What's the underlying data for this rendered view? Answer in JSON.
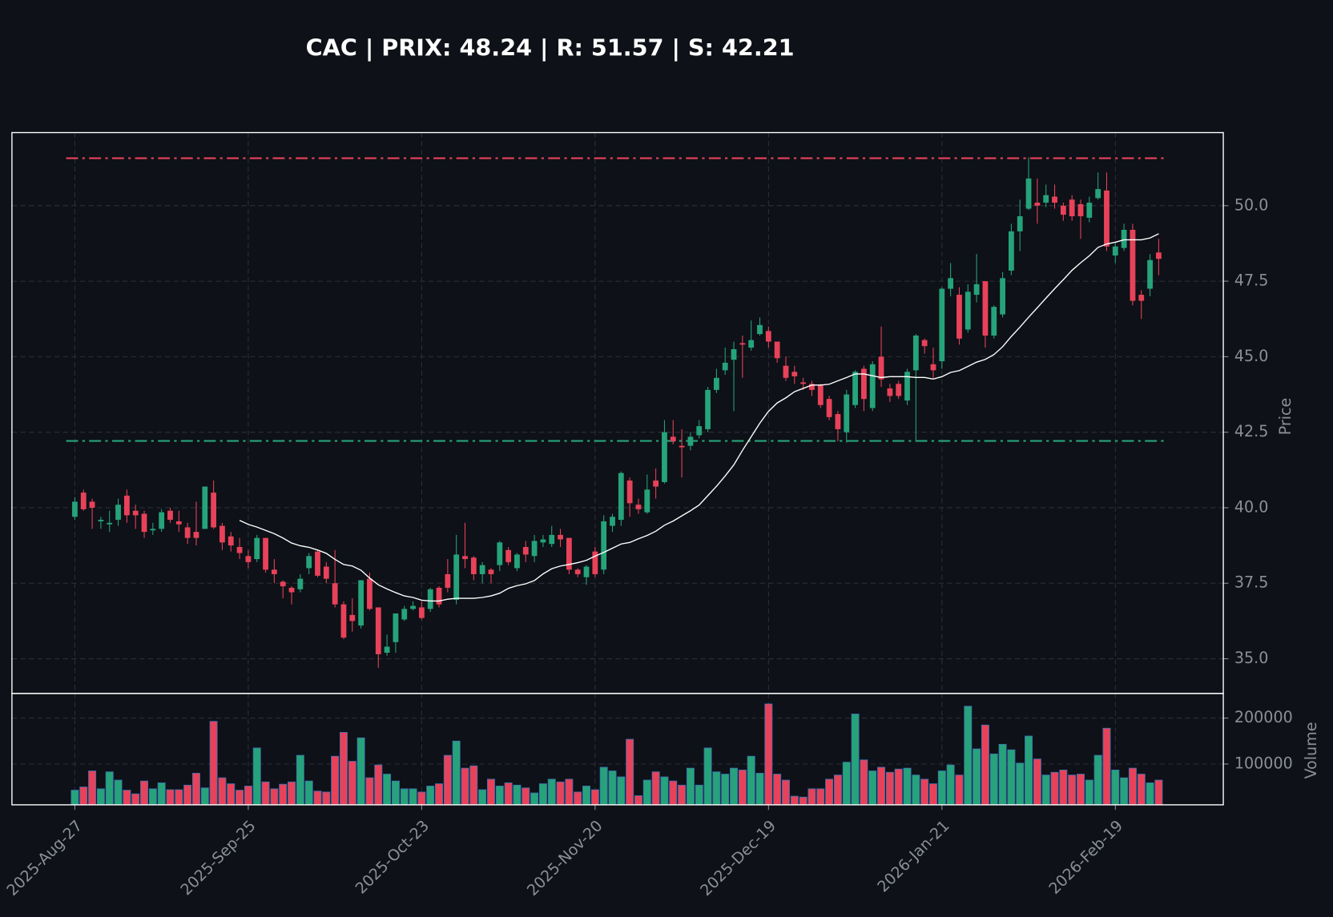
{
  "chart_data": {
    "type": "candlestick",
    "title": "CAC | PRIX: 48.24 | R: 51.57 | S: 42.21",
    "ylabel": "Price",
    "volume_label": "Volume",
    "categories": [
      "2025-Aug-27",
      null,
      null,
      null,
      null,
      null,
      null,
      null,
      null,
      null,
      null,
      null,
      null,
      null,
      null,
      null,
      null,
      null,
      null,
      null,
      "2025-Sep-25",
      null,
      null,
      null,
      null,
      null,
      null,
      null,
      null,
      null,
      null,
      null,
      null,
      null,
      null,
      null,
      null,
      null,
      null,
      null,
      "2025-Oct-23",
      null,
      null,
      null,
      null,
      null,
      null,
      null,
      null,
      null,
      null,
      null,
      null,
      null,
      null,
      null,
      null,
      null,
      null,
      null,
      "2025-Nov-20",
      null,
      null,
      null,
      null,
      null,
      null,
      null,
      null,
      null,
      null,
      null,
      null,
      null,
      null,
      null,
      null,
      null,
      null,
      null,
      "2025-Dec-19",
      null,
      null,
      null,
      null,
      null,
      null,
      null,
      null,
      null,
      null,
      null,
      null,
      null,
      null,
      null,
      null,
      null,
      null,
      null,
      "2026-Jan-21",
      null,
      null,
      null,
      null,
      null,
      null,
      null,
      null,
      null,
      null,
      null,
      null,
      null,
      null,
      null,
      null,
      null,
      null,
      null,
      "2026-Feb-19",
      null,
      null,
      null,
      null,
      null
    ],
    "open": [
      39.7,
      40.5,
      40.2,
      39.55,
      39.45,
      39.6,
      40.4,
      39.9,
      39.8,
      39.25,
      39.3,
      39.9,
      39.55,
      39.35,
      39.2,
      39.3,
      40.5,
      39.4,
      39.05,
      38.7,
      38.4,
      38.3,
      39.0,
      37.95,
      37.55,
      37.35,
      37.3,
      38.0,
      38.55,
      38.05,
      37.5,
      36.8,
      36.45,
      36.1,
      37.65,
      36.7,
      35.2,
      35.55,
      36.3,
      36.65,
      36.7,
      36.65,
      37.35,
      37.8,
      36.95,
      38.4,
      38.35,
      37.8,
      37.95,
      38.1,
      38.6,
      38.0,
      38.7,
      38.4,
      38.85,
      38.8,
      39.1,
      39.0,
      37.95,
      37.7,
      38.55,
      37.95,
      39.4,
      39.6,
      40.9,
      40.1,
      39.85,
      40.9,
      40.85,
      42.35,
      42.05,
      42.05,
      42.4,
      42.6,
      43.9,
      44.55,
      44.9,
      45.45,
      45.3,
      45.75,
      45.85,
      45.5,
      44.7,
      44.5,
      44.15,
      44.1,
      44.05,
      43.6,
      43.1,
      42.5,
      43.4,
      44.6,
      43.3,
      45.0,
      43.95,
      44.1,
      43.55,
      44.55,
      45.55,
      44.75,
      44.85,
      47.25,
      47.05,
      45.9,
      47.05,
      47.5,
      45.7,
      46.4,
      47.85,
      49.15,
      49.9,
      50.1,
      50.1,
      50.3,
      50.0,
      50.2,
      50.05,
      49.6,
      50.25,
      50.5,
      48.35,
      48.6,
      49.2,
      47.05,
      47.25,
      48.45
    ],
    "high": [
      40.35,
      40.6,
      40.3,
      39.7,
      39.9,
      40.3,
      40.6,
      40.1,
      39.9,
      39.5,
      39.95,
      40.0,
      39.9,
      39.5,
      40.2,
      40.7,
      40.9,
      39.5,
      39.2,
      39.0,
      38.6,
      39.1,
      39.0,
      38.3,
      37.6,
      37.4,
      37.8,
      38.5,
      38.6,
      38.2,
      38.6,
      36.9,
      37.0,
      37.6,
      37.85,
      36.7,
      35.8,
      36.5,
      36.75,
      36.9,
      36.9,
      37.35,
      37.4,
      38.3,
      39.1,
      39.5,
      38.4,
      38.2,
      38.0,
      38.9,
      38.7,
      38.5,
      38.9,
      39.1,
      39.1,
      39.4,
      39.3,
      39.0,
      38.0,
      38.1,
      38.7,
      39.75,
      39.8,
      41.2,
      41.0,
      40.3,
      41.1,
      41.3,
      42.9,
      42.9,
      42.6,
      42.5,
      42.9,
      44.0,
      44.6,
      45.3,
      45.5,
      45.7,
      46.2,
      46.3,
      46.0,
      45.5,
      45.0,
      44.7,
      44.3,
      44.2,
      44.1,
      43.7,
      43.2,
      43.9,
      44.55,
      44.7,
      44.85,
      46.0,
      44.1,
      44.2,
      44.6,
      45.75,
      45.6,
      45.3,
      47.3,
      48.1,
      47.3,
      47.4,
      48.4,
      47.5,
      46.7,
      47.8,
      49.4,
      50.2,
      51.6,
      50.9,
      50.7,
      50.7,
      50.1,
      50.35,
      50.2,
      50.3,
      51.1,
      51.1,
      48.8,
      49.4,
      49.4,
      47.2,
      48.4,
      48.9
    ],
    "low": [
      39.6,
      39.9,
      39.3,
      39.3,
      39.2,
      39.4,
      39.5,
      39.3,
      39.0,
      39.1,
      39.2,
      39.5,
      39.2,
      38.8,
      38.75,
      39.3,
      39.3,
      38.6,
      38.55,
      38.3,
      38.0,
      38.2,
      37.85,
      37.5,
      37.0,
      36.8,
      37.2,
      37.8,
      37.7,
      37.5,
      36.7,
      35.65,
      35.9,
      36.0,
      36.6,
      34.7,
      35.1,
      35.2,
      36.25,
      36.6,
      36.3,
      36.55,
      36.7,
      37.2,
      36.8,
      38.0,
      37.6,
      37.5,
      37.5,
      37.9,
      38.1,
      37.9,
      38.2,
      38.2,
      38.7,
      38.7,
      38.7,
      37.8,
      37.7,
      37.45,
      37.7,
      37.8,
      39.2,
      39.4,
      39.7,
      39.8,
      39.8,
      40.3,
      40.8,
      42.1,
      41.0,
      41.9,
      42.3,
      42.5,
      43.8,
      44.4,
      43.2,
      44.3,
      45.2,
      45.7,
      45.3,
      44.8,
      44.2,
      44.1,
      43.9,
      43.7,
      43.3,
      42.9,
      42.2,
      42.15,
      43.3,
      43.2,
      43.2,
      44.0,
      43.5,
      43.6,
      43.4,
      42.2,
      45.1,
      44.3,
      44.6,
      47.0,
      45.4,
      45.8,
      46.8,
      45.3,
      45.6,
      46.3,
      47.7,
      48.5,
      49.85,
      49.4,
      49.95,
      49.9,
      49.5,
      49.5,
      48.9,
      49.45,
      50.2,
      48.5,
      48.1,
      48.5,
      46.7,
      46.25,
      47.0,
      47.7
    ],
    "close": [
      40.2,
      39.95,
      40.0,
      39.6,
      39.5,
      40.1,
      39.75,
      39.75,
      39.2,
      39.3,
      39.85,
      39.6,
      39.45,
      39.0,
      39.0,
      40.7,
      39.35,
      38.85,
      38.75,
      38.5,
      38.2,
      39.0,
      37.95,
      37.8,
      37.4,
      37.2,
      37.65,
      38.4,
      37.75,
      37.65,
      36.8,
      35.7,
      36.25,
      37.6,
      36.65,
      35.15,
      35.4,
      36.5,
      36.65,
      36.75,
      36.35,
      37.3,
      36.8,
      37.35,
      38.45,
      38.3,
      37.8,
      38.1,
      37.8,
      38.85,
      38.2,
      38.45,
      38.45,
      38.9,
      38.95,
      39.1,
      38.95,
      37.95,
      37.8,
      38.05,
      37.8,
      39.55,
      39.7,
      41.15,
      40.15,
      39.95,
      40.6,
      40.7,
      42.5,
      42.2,
      42.0,
      42.35,
      42.7,
      43.9,
      44.3,
      44.8,
      45.25,
      45.4,
      45.55,
      46.05,
      45.5,
      44.95,
      44.3,
      44.35,
      44.1,
      43.9,
      43.4,
      43.0,
      42.6,
      43.75,
      44.5,
      43.6,
      44.75,
      44.25,
      43.7,
      43.7,
      44.5,
      45.7,
      45.35,
      44.55,
      47.25,
      47.6,
      45.6,
      47.15,
      47.4,
      45.7,
      46.65,
      47.6,
      49.15,
      49.65,
      50.9,
      50.0,
      50.35,
      50.1,
      49.7,
      49.65,
      49.65,
      50.1,
      50.55,
      48.65,
      48.65,
      49.2,
      46.85,
      46.85,
      48.2,
      48.24
    ],
    "volume": [
      43000,
      50000,
      85000,
      46000,
      83000,
      65000,
      43000,
      35000,
      63000,
      46000,
      59000,
      44000,
      44000,
      54000,
      80000,
      48000,
      193000,
      70000,
      57000,
      43000,
      52000,
      135000,
      61000,
      46000,
      56000,
      61000,
      119000,
      63000,
      41000,
      39000,
      117000,
      169000,
      106000,
      157000,
      70000,
      98000,
      78000,
      63000,
      46000,
      46000,
      39000,
      52000,
      57000,
      119000,
      150000,
      91000,
      96000,
      44000,
      67000,
      52000,
      59000,
      54000,
      48000,
      37000,
      57000,
      67000,
      61000,
      67000,
      39000,
      52000,
      44000,
      93000,
      85000,
      72000,
      154000,
      31000,
      65000,
      83000,
      72000,
      63000,
      54000,
      91000,
      54000,
      135000,
      83000,
      78000,
      91000,
      87000,
      117000,
      80000,
      231000,
      78000,
      65000,
      30000,
      28000,
      46000,
      46000,
      67000,
      76000,
      104000,
      209000,
      109000,
      85000,
      93000,
      82000,
      89000,
      91000,
      76000,
      67000,
      57000,
      85000,
      98000,
      76000,
      226000,
      133000,
      185000,
      122000,
      143000,
      131000,
      102000,
      161000,
      111000,
      76000,
      82000,
      87000,
      76000,
      78000,
      65000,
      119000,
      178000,
      87000,
      70000,
      91000,
      78000,
      59000,
      65000
    ],
    "ma": [
      null,
      null,
      null,
      null,
      null,
      null,
      null,
      null,
      null,
      null,
      null,
      null,
      null,
      null,
      null,
      null,
      null,
      null,
      null,
      39.58,
      39.45,
      39.36,
      39.25,
      39.14,
      39.0,
      38.83,
      38.74,
      38.69,
      38.6,
      38.49,
      38.29,
      38.12,
      38.07,
      37.93,
      37.67,
      37.45,
      37.31,
      37.19,
      37.08,
      37.03,
      36.94,
      36.91,
      36.91,
      36.97,
      37.0,
      37.0,
      37.0,
      37.03,
      37.08,
      37.17,
      37.33,
      37.42,
      37.48,
      37.59,
      37.81,
      37.98,
      38.07,
      38.12,
      38.18,
      38.26,
      38.4,
      38.52,
      38.66,
      38.8,
      38.85,
      38.97,
      39.08,
      39.22,
      39.42,
      39.56,
      39.73,
      39.9,
      40.09,
      40.4,
      40.71,
      41.05,
      41.42,
      41.9,
      42.35,
      42.8,
      43.19,
      43.47,
      43.64,
      43.84,
      43.95,
      44.06,
      44.06,
      44.09,
      44.2,
      44.31,
      44.43,
      44.43,
      44.37,
      44.31,
      44.34,
      44.34,
      44.34,
      44.31,
      44.31,
      44.26,
      44.34,
      44.48,
      44.54,
      44.68,
      44.82,
      44.91,
      45.07,
      45.33,
      45.67,
      45.98,
      46.31,
      46.62,
      46.94,
      47.25,
      47.55,
      47.86,
      48.11,
      48.34,
      48.62,
      48.73,
      48.79,
      48.87,
      48.87,
      48.87,
      48.93,
      49.07
    ],
    "resistance": 51.57,
    "support": 42.21,
    "up_color": "#26a37a",
    "down_color": "#e8425a",
    "ma_color": "#ffffff",
    "resistance_color": "#e8425a",
    "support_color": "#26a37a",
    "ylim": [
      33.85,
      52.42
    ],
    "yticks": [
      {
        "value": 35,
        "label": "35.0"
      },
      {
        "value": 37.5,
        "label": "37.5"
      },
      {
        "value": 40,
        "label": "40.0"
      },
      {
        "value": 42.5,
        "label": "42.5"
      },
      {
        "value": 45,
        "label": "45.0"
      },
      {
        "value": 47.5,
        "label": "47.5"
      },
      {
        "value": 50,
        "label": "50.0"
      }
    ],
    "volume_ylim": [
      11100,
      253700
    ],
    "volume_yticks": [
      100000,
      200000
    ],
    "grid": true
  }
}
